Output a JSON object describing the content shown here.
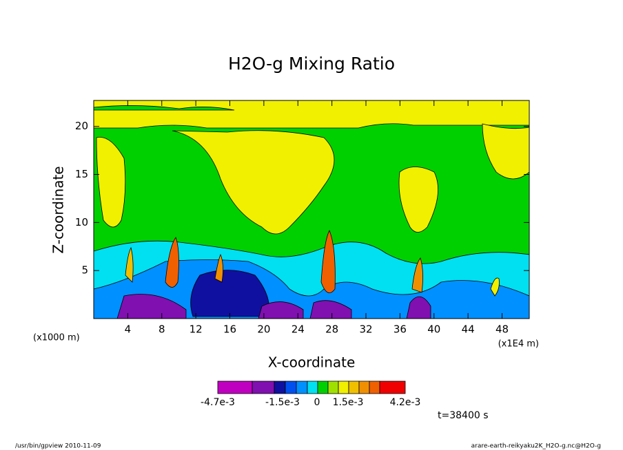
{
  "chart_data": {
    "type": "contour",
    "title": "H2O-g Mixing Ratio",
    "x_label": "X-coordinate",
    "y_label": "Z-coordinate",
    "x_unit_left": "(x1000 m)",
    "x_unit_right": "(x1E4 m)",
    "xlim": [
      0,
      51.2
    ],
    "ylim": [
      0,
      22.7
    ],
    "xticks": [
      4,
      8,
      12,
      16,
      20,
      24,
      28,
      32,
      36,
      40,
      44,
      48
    ],
    "yticks": [
      5,
      10,
      15,
      20
    ],
    "colorbar": {
      "colors": [
        "#c000c0",
        "#8010b0",
        "#1010a0",
        "#0050f0",
        "#0090ff",
        "#00e0f0",
        "#00d000",
        "#a0e000",
        "#f0f000",
        "#f0c000",
        "#f09000",
        "#f06000",
        "#f00000",
        "#f08080",
        "#ffb0c0"
      ],
      "labels": [
        "-4.7e-3",
        "-1.5e-3",
        "0",
        "1.5e-3",
        "4.2e-3"
      ]
    },
    "time_label": "t=38400 s",
    "footer_left": "/usr/bin/gpview  2010-11-09",
    "footer_right": "arare-earth-reikyaku2K_H2O-g.nc@H2O-g"
  }
}
